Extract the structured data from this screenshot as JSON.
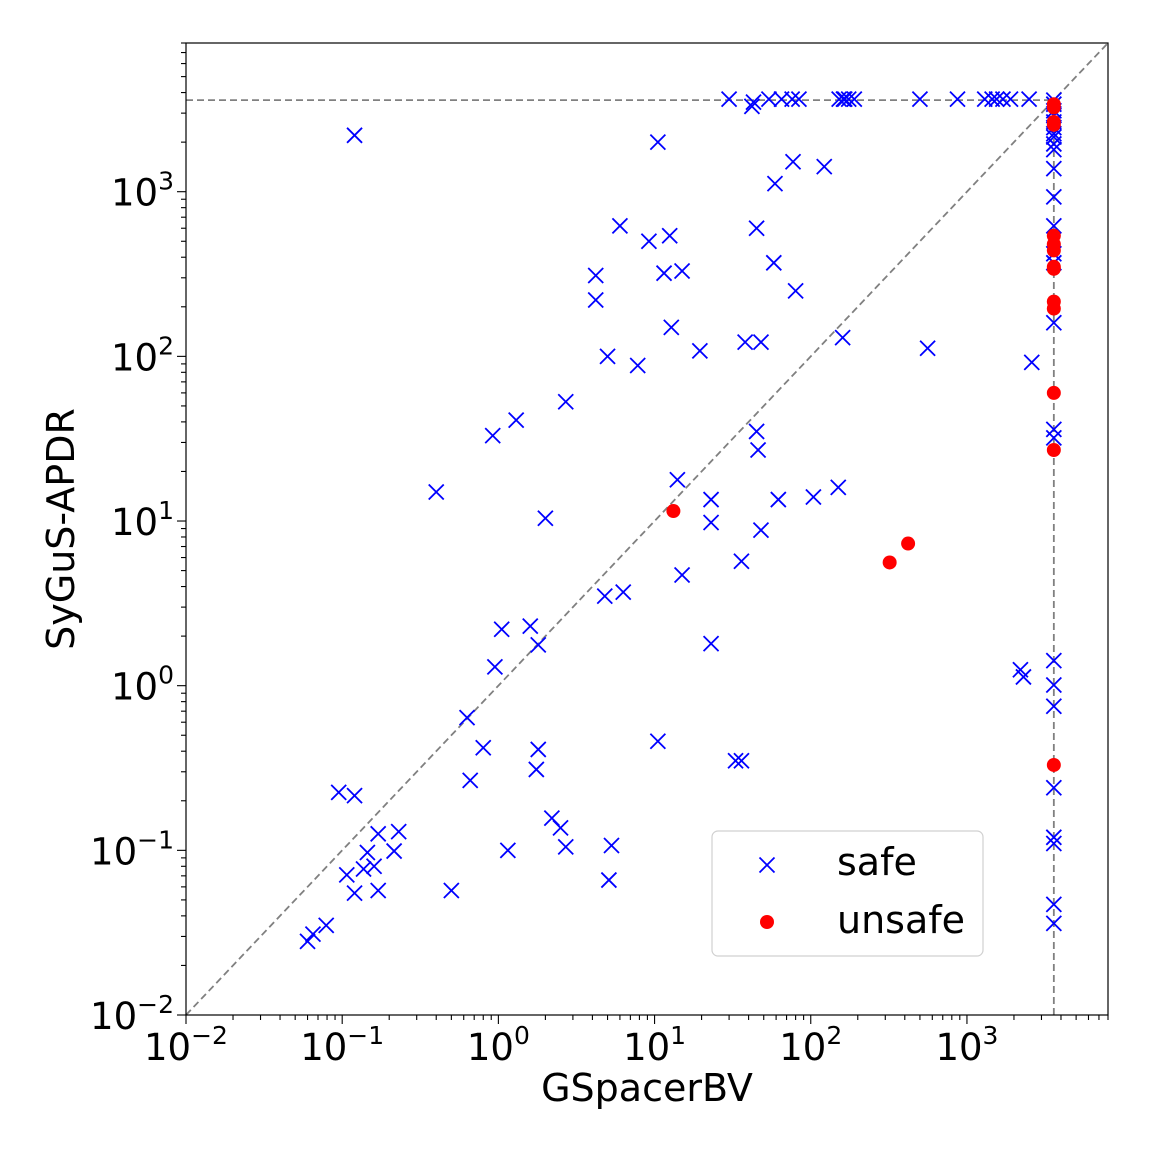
{
  "chart_data": {
    "type": "scatter",
    "xlabel": "GSpacerBV",
    "ylabel": "SyGuS-APDR",
    "xscale": "log",
    "yscale": "log",
    "xlim": [
      0.01,
      8000
    ],
    "ylim": [
      0.01,
      8000
    ],
    "timeout": 3600,
    "grid": false,
    "legend_position": "lower-right",
    "x_ticks": [
      {
        "base": "10",
        "exp": "−2",
        "value": 0.01
      },
      {
        "base": "10",
        "exp": "−1",
        "value": 0.1
      },
      {
        "base": "10",
        "exp": "0",
        "value": 1
      },
      {
        "base": "10",
        "exp": "1",
        "value": 10
      },
      {
        "base": "10",
        "exp": "2",
        "value": 100
      },
      {
        "base": "10",
        "exp": "3",
        "value": 1000
      }
    ],
    "y_ticks": [
      {
        "base": "10",
        "exp": "−2",
        "value": 0.01
      },
      {
        "base": "10",
        "exp": "−1",
        "value": 0.1
      },
      {
        "base": "10",
        "exp": "0",
        "value": 1
      },
      {
        "base": "10",
        "exp": "1",
        "value": 10
      },
      {
        "base": "10",
        "exp": "2",
        "value": 100
      },
      {
        "base": "10",
        "exp": "3",
        "value": 1000
      }
    ],
    "colors": {
      "safe": "#0000ff",
      "unsafe": "#ff0000",
      "reference": "#808080"
    },
    "series": [
      {
        "name": "safe",
        "marker": "x",
        "points": [
          [
            0.06,
            0.028
          ],
          [
            0.065,
            0.031
          ],
          [
            0.079,
            0.035
          ],
          [
            0.095,
            0.225
          ],
          [
            0.107,
            0.071
          ],
          [
            0.12,
            0.215
          ],
          [
            0.12,
            0.055
          ],
          [
            0.137,
            0.077
          ],
          [
            0.145,
            0.097
          ],
          [
            0.16,
            0.08
          ],
          [
            0.17,
            0.057
          ],
          [
            0.17,
            0.126
          ],
          [
            0.215,
            0.099
          ],
          [
            0.23,
            0.13
          ],
          [
            0.12,
            2200
          ],
          [
            0.4,
            15
          ],
          [
            0.5,
            0.057
          ],
          [
            0.63,
            0.64
          ],
          [
            0.66,
            0.266
          ],
          [
            0.8,
            0.42
          ],
          [
            0.92,
            33
          ],
          [
            0.95,
            1.3
          ],
          [
            1.05,
            2.2
          ],
          [
            1.15,
            0.1
          ],
          [
            1.3,
            41
          ],
          [
            1.6,
            2.3
          ],
          [
            1.8,
            1.77
          ],
          [
            1.8,
            0.41
          ],
          [
            1.75,
            0.31
          ],
          [
            2.0,
            10.4
          ],
          [
            2.2,
            0.157
          ],
          [
            2.5,
            0.137
          ],
          [
            2.7,
            53
          ],
          [
            2.7,
            0.105
          ],
          [
            4.2,
            310
          ],
          [
            4.2,
            220
          ],
          [
            4.8,
            3.5
          ],
          [
            5.0,
            100
          ],
          [
            5.1,
            0.066
          ],
          [
            5.3,
            0.107
          ],
          [
            6.0,
            620
          ],
          [
            6.3,
            3.7
          ],
          [
            7.8,
            88
          ],
          [
            9.2,
            500
          ],
          [
            10.5,
            2000
          ],
          [
            10.5,
            0.46
          ],
          [
            11.5,
            320
          ],
          [
            12.5,
            540
          ],
          [
            12.8,
            150
          ],
          [
            14.0,
            17.8
          ],
          [
            15.0,
            330
          ],
          [
            15.0,
            4.7
          ],
          [
            19.5,
            108
          ],
          [
            23.0,
            13.5
          ],
          [
            23.0,
            9.8
          ],
          [
            23.0,
            1.8
          ],
          [
            30,
            3650
          ],
          [
            33,
            0.35
          ],
          [
            36,
            0.35
          ],
          [
            36,
            5.7
          ],
          [
            38,
            122
          ],
          [
            42,
            3300
          ],
          [
            43,
            3500
          ],
          [
            45,
            600
          ],
          [
            45,
            35
          ],
          [
            46,
            27
          ],
          [
            48,
            122
          ],
          [
            48,
            8.8
          ],
          [
            54,
            3650
          ],
          [
            59,
            1120
          ],
          [
            58,
            370
          ],
          [
            62,
            13.5
          ],
          [
            65,
            3650
          ],
          [
            76,
            3650
          ],
          [
            77,
            1520
          ],
          [
            80,
            250
          ],
          [
            84,
            3650
          ],
          [
            104,
            14
          ],
          [
            122,
            1420
          ],
          [
            150,
            16
          ],
          [
            152,
            3650
          ],
          [
            160,
            130
          ],
          [
            162,
            3650
          ],
          [
            165,
            3650
          ],
          [
            175,
            3650
          ],
          [
            190,
            3650
          ],
          [
            500,
            3650
          ],
          [
            560,
            112
          ],
          [
            870,
            3650
          ],
          [
            1300,
            3650
          ],
          [
            1450,
            3650
          ],
          [
            1550,
            3650
          ],
          [
            1700,
            3650
          ],
          [
            1900,
            3650
          ],
          [
            2200,
            1.25
          ],
          [
            2300,
            1.13
          ],
          [
            2500,
            3650
          ],
          [
            2600,
            92
          ],
          [
            3600,
            3600
          ],
          [
            3600,
            3400
          ],
          [
            3600,
            3100
          ],
          [
            3600,
            2900
          ],
          [
            3600,
            2650
          ],
          [
            3600,
            2450
          ],
          [
            3600,
            2250
          ],
          [
            3600,
            2150
          ],
          [
            3600,
            1950
          ],
          [
            3600,
            1800
          ],
          [
            3600,
            1380
          ],
          [
            3600,
            930
          ],
          [
            3600,
            620
          ],
          [
            3600,
            420
          ],
          [
            3600,
            370
          ],
          [
            3600,
            160
          ],
          [
            3600,
            36
          ],
          [
            3600,
            32
          ],
          [
            3600,
            1.42
          ],
          [
            3600,
            1.01
          ],
          [
            3600,
            0.75
          ],
          [
            3600,
            0.24
          ],
          [
            3600,
            0.12
          ],
          [
            3600,
            0.11
          ],
          [
            3600,
            0.047
          ],
          [
            3600,
            0.036
          ]
        ]
      },
      {
        "name": "unsafe",
        "marker": "o",
        "points": [
          [
            13.2,
            11.5
          ],
          [
            320,
            5.6
          ],
          [
            420,
            7.3
          ],
          [
            3600,
            3400
          ],
          [
            3600,
            3250
          ],
          [
            3600,
            2650
          ],
          [
            3600,
            2550
          ],
          [
            3600,
            540
          ],
          [
            3600,
            480
          ],
          [
            3600,
            440
          ],
          [
            3600,
            350
          ],
          [
            3600,
            340
          ],
          [
            3600,
            215
          ],
          [
            3600,
            195
          ],
          [
            3600,
            60
          ],
          [
            3600,
            27
          ],
          [
            3600,
            0.33
          ]
        ]
      }
    ]
  }
}
